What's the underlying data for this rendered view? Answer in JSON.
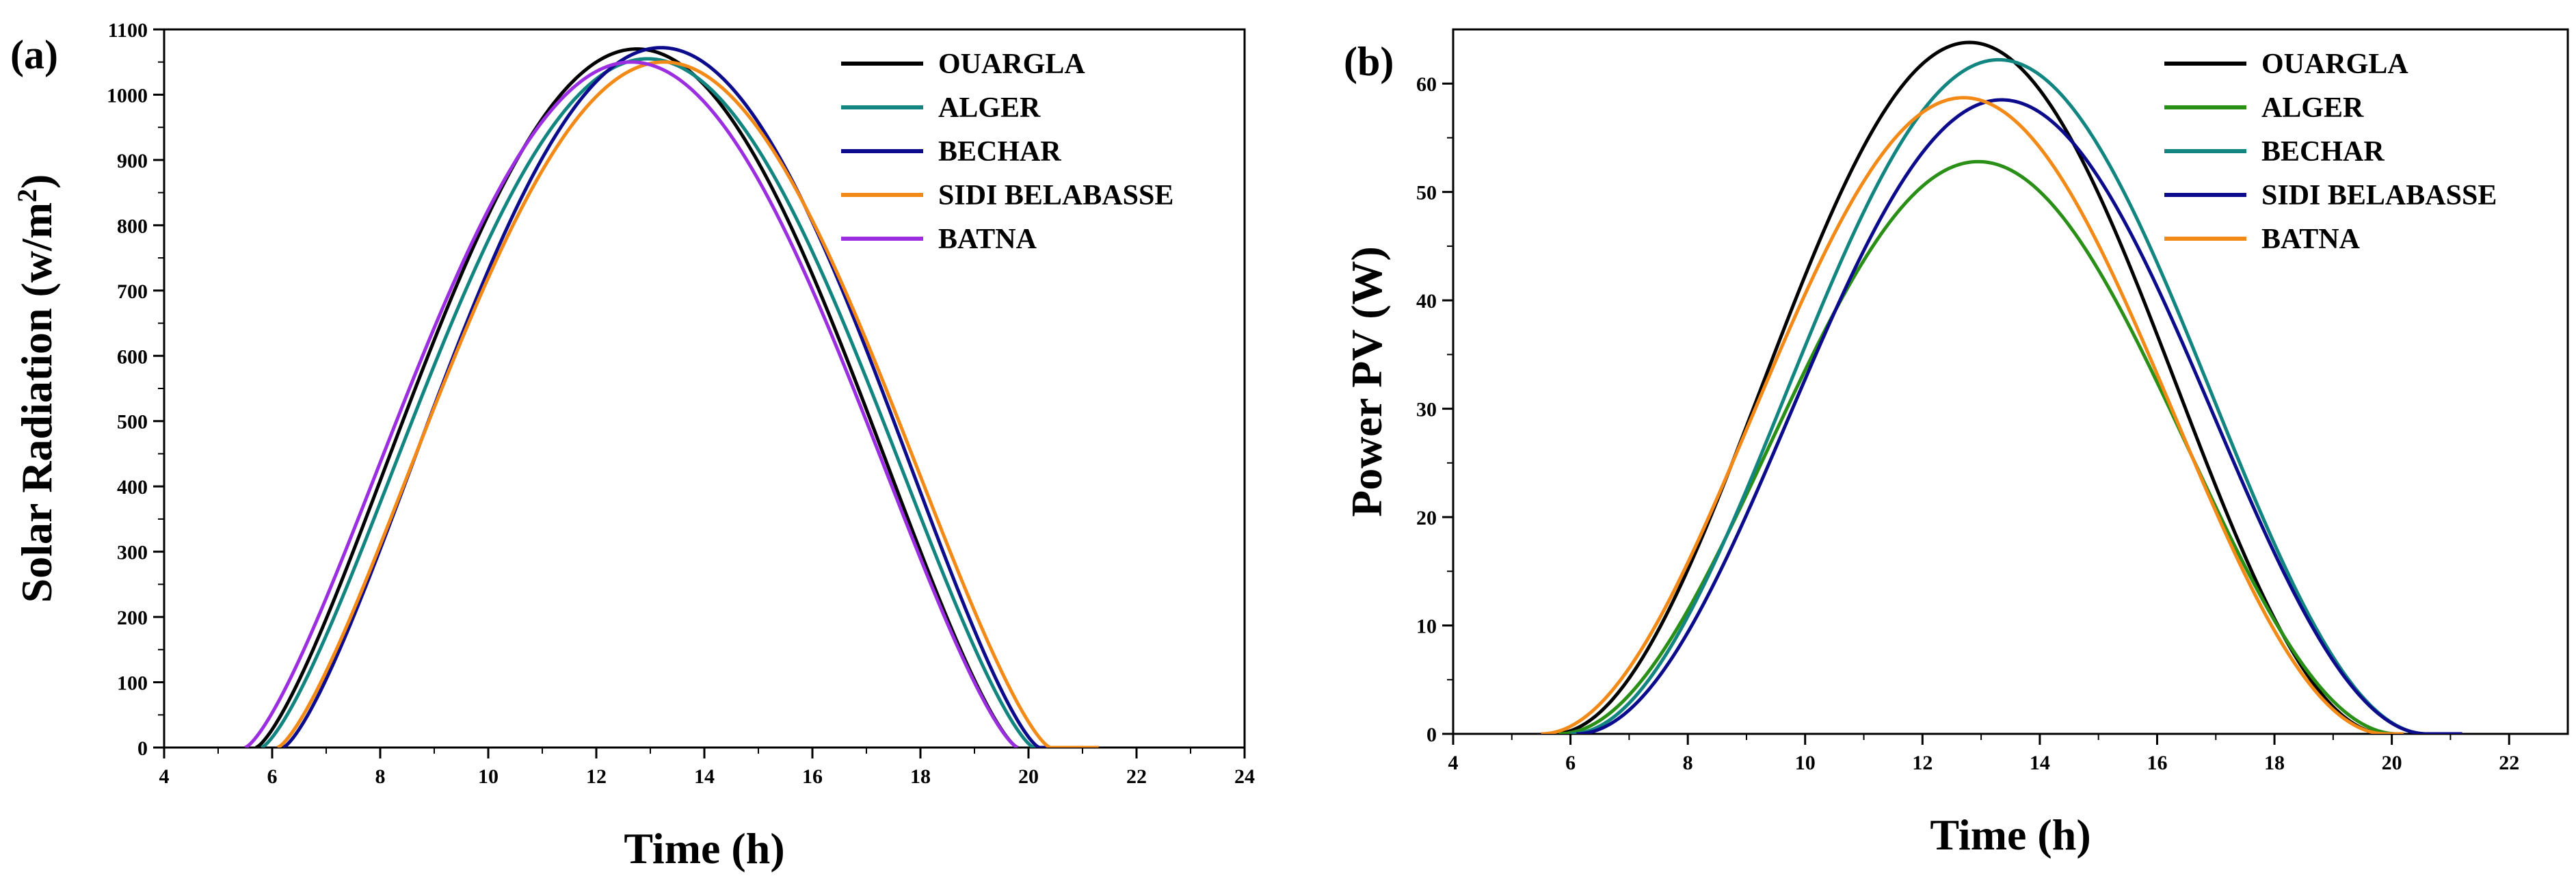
{
  "chart_data": [
    {
      "panel_label": "(a)",
      "type": "line",
      "xlabel": "Time (h)",
      "ylabel": "Solar Radiation  (w/m",
      "ylabel_sup": "2",
      "ylabel_close": ")",
      "xlim": [
        4,
        24
      ],
      "ylim": [
        0,
        1100
      ],
      "xticks": [
        4,
        6,
        8,
        10,
        12,
        14,
        16,
        18,
        20,
        22,
        24
      ],
      "yticks": [
        0,
        100,
        200,
        300,
        400,
        500,
        600,
        700,
        800,
        900,
        1000,
        1100
      ],
      "grid": false,
      "legend_position": "top-right",
      "series": [
        {
          "name": "OUARGLA",
          "color": "#000000",
          "shape": "sine",
          "start": 5.7,
          "end": 19.8,
          "peak": 1070,
          "tail_end": 19.8
        },
        {
          "name": "ALGER",
          "color": "#138581",
          "shape": "sine",
          "start": 5.8,
          "end": 20.1,
          "peak": 1055,
          "tail_end": 20.3
        },
        {
          "name": "BECHAR",
          "color": "#0b0b8c",
          "shape": "sine",
          "start": 6.2,
          "end": 20.2,
          "peak": 1072,
          "tail_end": 20.6
        },
        {
          "name": "SIDI BELABASSE",
          "color": "#f38a17",
          "shape": "sine",
          "start": 6.1,
          "end": 20.4,
          "peak": 1050,
          "tail_end": 21.3
        },
        {
          "name": "BATNA",
          "color": "#9b2ee0",
          "shape": "sine",
          "start": 5.5,
          "end": 19.8,
          "peak": 1050,
          "tail_end": 19.8
        }
      ]
    },
    {
      "panel_label": "(b)",
      "type": "line",
      "xlabel": "Time (h)",
      "ylabel": "Power PV (W)",
      "xlim": [
        4,
        23
      ],
      "ylim": [
        0,
        65
      ],
      "xticks": [
        4,
        6,
        8,
        10,
        12,
        14,
        16,
        18,
        20,
        22
      ],
      "yticks": [
        0,
        10,
        20,
        30,
        40,
        50,
        60
      ],
      "grid": false,
      "legend_position": "top-right",
      "series": [
        {
          "name": "OUARGLA",
          "color": "#000000",
          "shape": "sine2",
          "start": 5.7,
          "end": 19.9,
          "peak": 63.8,
          "tail_end": 19.9
        },
        {
          "name": "ALGER",
          "color": "#2a8f16",
          "shape": "sine2",
          "start": 5.8,
          "end": 20.1,
          "peak": 52.8,
          "tail_end": 20.2
        },
        {
          "name": "BECHAR",
          "color": "#138581",
          "shape": "sine2",
          "start": 6.0,
          "end": 20.6,
          "peak": 62.2,
          "tail_end": 20.8
        },
        {
          "name": "SIDI BELABASSE",
          "color": "#0b0b8c",
          "shape": "sine2",
          "start": 6.1,
          "end": 20.6,
          "peak": 58.5,
          "tail_end": 21.2
        },
        {
          "name": "BATNA",
          "color": "#f38a17",
          "shape": "sine2",
          "start": 5.5,
          "end": 19.9,
          "peak": 58.7,
          "tail_end": 20.2
        }
      ]
    }
  ]
}
